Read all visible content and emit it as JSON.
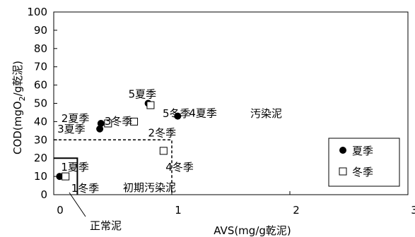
{
  "chart_data": {
    "type": "scatter",
    "xlabel": "AVS(mg/g乾泥)",
    "ylabel_parts": [
      "COD(mgO",
      "2",
      "/g乾泥)"
    ],
    "xlim": [
      0,
      3
    ],
    "ylim": [
      0,
      100
    ],
    "x_ticks": [
      "0",
      "1",
      "2",
      "3"
    ],
    "y_ticks": [
      "0",
      "10",
      "20",
      "30",
      "40",
      "50",
      "60",
      "70",
      "80",
      "90",
      "100"
    ],
    "series": [
      {
        "name": "夏季",
        "marker": "filled-circle",
        "points": [
          {
            "label": "1夏季",
            "x": 0.05,
            "y": 10
          },
          {
            "label": "2夏季",
            "x": 0.4,
            "y": 39
          },
          {
            "label": "3夏季",
            "x": 0.39,
            "y": 36
          },
          {
            "label": "4夏季",
            "x": 1.05,
            "y": 43
          },
          {
            "label": "5夏季",
            "x": 0.8,
            "y": 50
          }
        ]
      },
      {
        "name": "冬季",
        "marker": "open-square",
        "points": [
          {
            "label": "1冬季",
            "x": 0.1,
            "y": 10
          },
          {
            "label": "2冬季",
            "x": 0.68,
            "y": 40
          },
          {
            "label": "3冬季",
            "x": 0.46,
            "y": 39
          },
          {
            "label": "4冬季",
            "x": 0.93,
            "y": 24
          },
          {
            "label": "5冬季",
            "x": 0.82,
            "y": 49
          }
        ]
      }
    ],
    "regions": {
      "normal": {
        "label": "正常泥",
        "x_max": 0.2,
        "y_max": 20
      },
      "early": {
        "label": "初期汚染泥",
        "x_max": 1.0,
        "y_max": 30
      },
      "polluted": {
        "label": "汚染泥"
      }
    },
    "legend": {
      "placement": "right",
      "items": [
        "夏季",
        "冬季"
      ]
    },
    "grid": false
  }
}
